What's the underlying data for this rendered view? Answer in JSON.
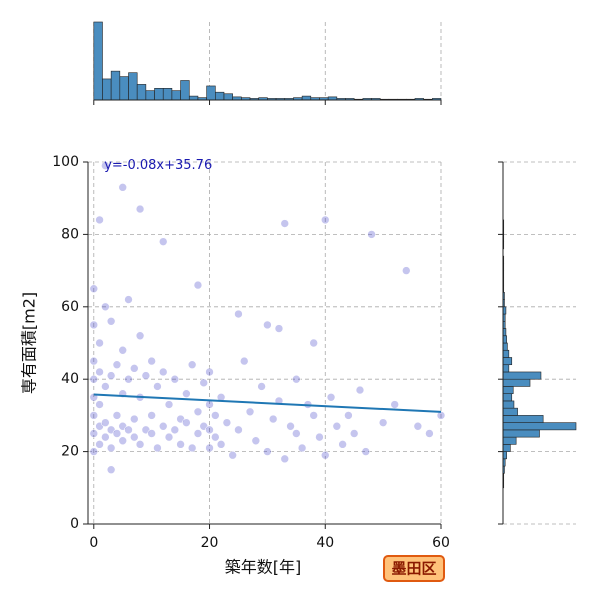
{
  "chart_data": {
    "type": "jointplot",
    "xlabel": "築年数[年]",
    "ylabel": "専有面積[m2]",
    "annotation": "y=-0.08x+35.76",
    "badge": "墨田区",
    "regression": {
      "slope": -0.08,
      "intercept": 35.76,
      "color": "#1f77b4"
    },
    "annotation_color": "#1a1ab0",
    "point_color": "#4040c8",
    "hist_color": "#4a8dbf",
    "grid": true,
    "xlim": [
      -1,
      60
    ],
    "xticks": [
      0,
      20,
      40,
      60
    ],
    "ylim": [
      0,
      100
    ],
    "yticks": [
      0,
      20,
      40,
      60,
      80,
      100
    ],
    "x": [
      0,
      0,
      0,
      0,
      0,
      0,
      0,
      0,
      1,
      1,
      1,
      1,
      1,
      2,
      2,
      2,
      2,
      3,
      3,
      3,
      3,
      4,
      4,
      4,
      5,
      5,
      5,
      5,
      6,
      6,
      6,
      7,
      7,
      7,
      8,
      8,
      8,
      9,
      9,
      10,
      10,
      10,
      11,
      11,
      12,
      12,
      13,
      13,
      14,
      14,
      15,
      15,
      16,
      16,
      17,
      17,
      18,
      18,
      19,
      19,
      20,
      20,
      20,
      20,
      21,
      21,
      22,
      22,
      23,
      24,
      25,
      26,
      27,
      28,
      29,
      30,
      30,
      31,
      32,
      33,
      33,
      34,
      35,
      35,
      36,
      37,
      38,
      39,
      40,
      40,
      41,
      42,
      43,
      44,
      45,
      46,
      47,
      48,
      50,
      52,
      54,
      56,
      58,
      60,
      2,
      5,
      8,
      12,
      18,
      25,
      32,
      38,
      1,
      3
    ],
    "y": [
      20,
      25,
      30,
      35,
      40,
      45,
      55,
      65,
      22,
      27,
      33,
      42,
      50,
      24,
      28,
      38,
      60,
      21,
      26,
      41,
      56,
      25,
      30,
      44,
      23,
      27,
      36,
      48,
      26,
      40,
      62,
      24,
      29,
      43,
      22,
      35,
      52,
      26,
      41,
      25,
      30,
      45,
      21,
      38,
      27,
      42,
      24,
      33,
      26,
      40,
      22,
      29,
      28,
      36,
      21,
      44,
      25,
      31,
      27,
      39,
      21,
      26,
      33,
      42,
      24,
      30,
      22,
      35,
      28,
      19,
      26,
      45,
      31,
      23,
      38,
      20,
      55,
      29,
      34,
      18,
      83,
      27,
      25,
      40,
      21,
      33,
      30,
      24,
      19,
      84,
      35,
      27,
      22,
      30,
      25,
      37,
      20,
      80,
      28,
      33,
      70,
      27,
      25,
      30,
      99,
      93,
      87,
      78,
      66,
      58,
      54,
      50,
      84,
      15
    ],
    "x_hist": {
      "bins": [
        0,
        1.5,
        3,
        4.5,
        6,
        7.5,
        9,
        10.5,
        12,
        13.5,
        15,
        16.5,
        18,
        19.5,
        21,
        22.5,
        24,
        25.5,
        27,
        28.5,
        30,
        31.5,
        33,
        34.5,
        36,
        37.5,
        39,
        40.5,
        42,
        43.5,
        45,
        46.5,
        48,
        49.5,
        51,
        52.5,
        54,
        55.5,
        57,
        58.5,
        60
      ],
      "counts": [
        100,
        27,
        37,
        30,
        35,
        20,
        12,
        15,
        15,
        12,
        25,
        5,
        3,
        18,
        10,
        8,
        4,
        3,
        2,
        3,
        2,
        2,
        2,
        3,
        5,
        3,
        3,
        4,
        2,
        2,
        1,
        2,
        2,
        1,
        1,
        1,
        1,
        2,
        1,
        2
      ],
      "lim": [
        0,
        100
      ]
    },
    "y_hist": {
      "bins": [
        0,
        2,
        4,
        6,
        8,
        10,
        12,
        14,
        16,
        18,
        20,
        22,
        24,
        26,
        28,
        30,
        32,
        34,
        36,
        38,
        40,
        42,
        44,
        46,
        48,
        50,
        52,
        54,
        56,
        58,
        60,
        62,
        64,
        66,
        68,
        70,
        72,
        74,
        76,
        78,
        80,
        82,
        84,
        86,
        88,
        90,
        92,
        94,
        96,
        98,
        100
      ],
      "counts": [
        0,
        0,
        0,
        0,
        0,
        1,
        1,
        2,
        3,
        5,
        10,
        18,
        50,
        100,
        55,
        20,
        15,
        12,
        14,
        37,
        52,
        8,
        12,
        8,
        6,
        5,
        4,
        3,
        3,
        4,
        2,
        2,
        1,
        1,
        1,
        1,
        1,
        0,
        1,
        1,
        1,
        1,
        0,
        0,
        0,
        0,
        0,
        0,
        0,
        0
      ],
      "lim": [
        0,
        100
      ]
    }
  }
}
